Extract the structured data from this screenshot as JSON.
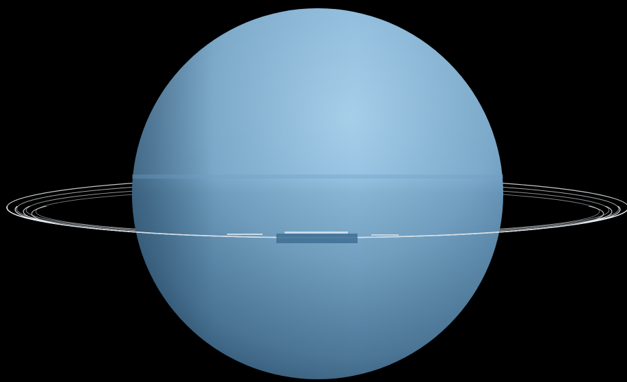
{
  "scene": {
    "subject": "planet-with-rings",
    "colors": {
      "background": "#000000",
      "planet_light": "#9cc8e6",
      "planet_mid": "#7fb1d6",
      "planet_shadow": "#2f5f83",
      "ring": "#e9eef2",
      "ring_shadow": "#3e6f93"
    }
  }
}
